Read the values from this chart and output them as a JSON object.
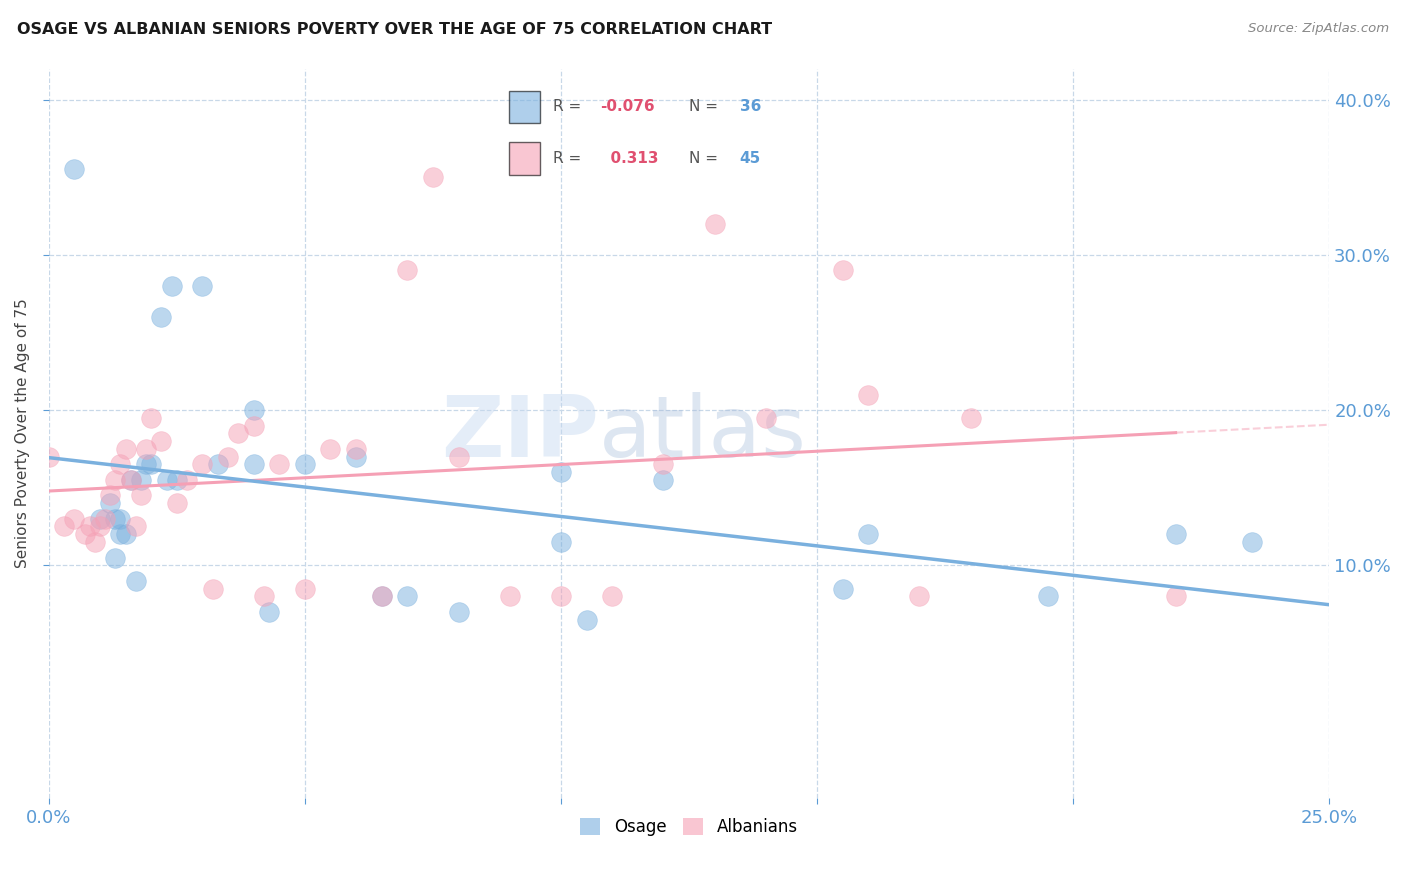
{
  "title": "OSAGE VS ALBANIAN SENIORS POVERTY OVER THE AGE OF 75 CORRELATION CHART",
  "source": "Source: ZipAtlas.com",
  "ylabel": "Seniors Poverty Over the Age of 75",
  "xlim": [
    0.0,
    0.25
  ],
  "ylim": [
    -0.05,
    0.42
  ],
  "xticks": [
    0.0,
    0.05,
    0.1,
    0.15,
    0.2,
    0.25
  ],
  "yticks": [
    0.1,
    0.2,
    0.3,
    0.4
  ],
  "ytick_labels": [
    "10.0%",
    "20.0%",
    "30.0%",
    "40.0%"
  ],
  "xtick_labels_show": [
    "0.0%",
    "25.0%"
  ],
  "watermark_zip": "ZIP",
  "watermark_atlas": "atlas",
  "background_color": "#ffffff",
  "grid_color": "#c8d8e8",
  "osage_color": "#7ab0de",
  "albanian_color": "#f5a0b5",
  "legend_osage_text_r": "-0.076",
  "legend_osage_text_n": "36",
  "legend_albanian_text_r": "0.313",
  "legend_albanian_text_n": "45",
  "tick_color": "#5b9bd5",
  "osage_x": [
    0.005,
    0.01,
    0.012,
    0.013,
    0.014,
    0.015,
    0.016,
    0.017,
    0.018,
    0.019,
    0.02,
    0.023,
    0.025,
    0.03,
    0.04,
    0.04,
    0.05,
    0.06,
    0.07,
    0.08,
    0.1,
    0.105,
    0.12,
    0.155,
    0.16,
    0.195,
    0.22,
    0.235,
    0.013,
    0.014,
    0.022,
    0.024,
    0.033,
    0.043,
    0.065,
    0.1
  ],
  "osage_y": [
    0.355,
    0.13,
    0.14,
    0.13,
    0.12,
    0.12,
    0.155,
    0.09,
    0.155,
    0.165,
    0.165,
    0.155,
    0.155,
    0.28,
    0.2,
    0.165,
    0.165,
    0.17,
    0.08,
    0.07,
    0.115,
    0.065,
    0.155,
    0.085,
    0.12,
    0.08,
    0.12,
    0.115,
    0.105,
    0.13,
    0.26,
    0.28,
    0.165,
    0.07,
    0.08,
    0.16
  ],
  "albanian_x": [
    0.0,
    0.003,
    0.005,
    0.007,
    0.008,
    0.009,
    0.01,
    0.011,
    0.012,
    0.013,
    0.014,
    0.015,
    0.016,
    0.017,
    0.018,
    0.019,
    0.02,
    0.022,
    0.025,
    0.027,
    0.03,
    0.032,
    0.035,
    0.037,
    0.04,
    0.042,
    0.045,
    0.05,
    0.055,
    0.06,
    0.065,
    0.07,
    0.075,
    0.08,
    0.09,
    0.1,
    0.11,
    0.12,
    0.13,
    0.14,
    0.155,
    0.16,
    0.17,
    0.18,
    0.22
  ],
  "albanian_y": [
    0.17,
    0.125,
    0.13,
    0.12,
    0.125,
    0.115,
    0.125,
    0.13,
    0.145,
    0.155,
    0.165,
    0.175,
    0.155,
    0.125,
    0.145,
    0.175,
    0.195,
    0.18,
    0.14,
    0.155,
    0.165,
    0.085,
    0.17,
    0.185,
    0.19,
    0.08,
    0.165,
    0.085,
    0.175,
    0.175,
    0.08,
    0.29,
    0.35,
    0.17,
    0.08,
    0.08,
    0.08,
    0.165,
    0.32,
    0.195,
    0.29,
    0.21,
    0.08,
    0.195,
    0.08
  ]
}
